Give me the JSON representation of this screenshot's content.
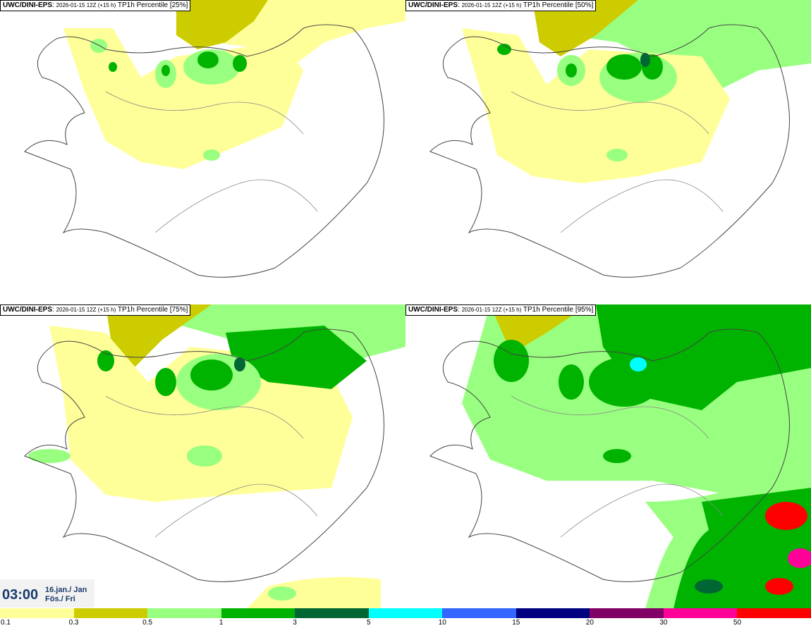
{
  "panels": [
    {
      "source": "UWC/DINI-EPS",
      "run": "2026-01-15 12Z (+15 h)",
      "field": "TP1h Percentile [25%]"
    },
    {
      "source": "UWC/DINI-EPS",
      "run": "2026-01-15 12Z (+15 h)",
      "field": "TP1h Percentile [50%]"
    },
    {
      "source": "UWC/DINI-EPS",
      "run": "2026-01-15 12Z (+15 h)",
      "field": "TP1h Percentile [75%]"
    },
    {
      "source": "UWC/DINI-EPS",
      "run": "2026-01-15 12Z (+15 h)",
      "field": "TP1h Percentile [95%]"
    }
  ],
  "time": "03:00",
  "date_line1": "16.jan./ Jan",
  "date_line2": "Fös./ Fri",
  "legend": {
    "colors": [
      "#ffff99",
      "#cccc00",
      "#99ff80",
      "#00b300",
      "#006633",
      "#00ffff",
      "#3366ff",
      "#000080",
      "#800066",
      "#ff0099",
      "#ff0000"
    ],
    "ticks": [
      "0.1",
      "0.3",
      "0.5",
      "1",
      "3",
      "5",
      "10",
      "15",
      "20",
      "30",
      "50"
    ]
  }
}
